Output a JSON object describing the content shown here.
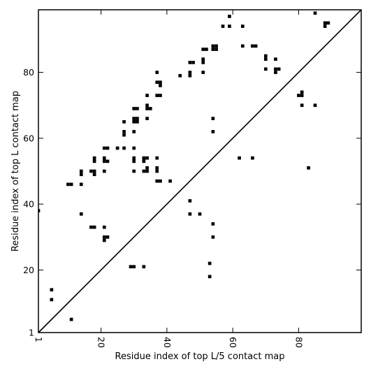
{
  "chart_data": {
    "type": "scatter",
    "title": "",
    "xlabel": "Residue index of top L/5 contact map",
    "ylabel": "Residue index of top L contact map",
    "xlim": [
      1,
      99
    ],
    "ylim": [
      1,
      99
    ],
    "xticks": [
      1,
      20,
      40,
      60,
      80
    ],
    "yticks": [
      1,
      20,
      40,
      60,
      80
    ],
    "x_tick_labels": [
      "1",
      "20",
      "40",
      "60",
      "80"
    ],
    "y_tick_labels": [
      "1",
      "20",
      "40",
      "60",
      "80"
    ],
    "x_tick_label_rotation_deg": 90,
    "grid": false,
    "legend": "none",
    "marker": "square",
    "marker_color": "#000000",
    "reference_line": {
      "type": "diagonal",
      "from": [
        1,
        1
      ],
      "to": [
        99,
        99
      ]
    },
    "points": [
      [
        59,
        97
      ],
      [
        85,
        98
      ],
      [
        57,
        94
      ],
      [
        59,
        94
      ],
      [
        63,
        94
      ],
      [
        88,
        95
      ],
      [
        89,
        95
      ],
      [
        88,
        94
      ],
      [
        54,
        88
      ],
      [
        55,
        88
      ],
      [
        63,
        88
      ],
      [
        66,
        88
      ],
      [
        67,
        88
      ],
      [
        52,
        87
      ],
      [
        51,
        87
      ],
      [
        55,
        87
      ],
      [
        54,
        87
      ],
      [
        70,
        85
      ],
      [
        70,
        84
      ],
      [
        73,
        84
      ],
      [
        51,
        84
      ],
      [
        51,
        83
      ],
      [
        47,
        83
      ],
      [
        48,
        83
      ],
      [
        70,
        81
      ],
      [
        73,
        81
      ],
      [
        74,
        81
      ],
      [
        73,
        80
      ],
      [
        37,
        80
      ],
      [
        47,
        80
      ],
      [
        51,
        80
      ],
      [
        47,
        79
      ],
      [
        44,
        79
      ],
      [
        37,
        77
      ],
      [
        38,
        77
      ],
      [
        38,
        76
      ],
      [
        81,
        74
      ],
      [
        80,
        73
      ],
      [
        81,
        73
      ],
      [
        34,
        73
      ],
      [
        37,
        73
      ],
      [
        38,
        73
      ],
      [
        81,
        70
      ],
      [
        85,
        70
      ],
      [
        30,
        69
      ],
      [
        31,
        69
      ],
      [
        34,
        70
      ],
      [
        34,
        69
      ],
      [
        35,
        69
      ],
      [
        30,
        66
      ],
      [
        31,
        66
      ],
      [
        34,
        66
      ],
      [
        54,
        66
      ],
      [
        30,
        65
      ],
      [
        31,
        65
      ],
      [
        27,
        65
      ],
      [
        27,
        62
      ],
      [
        27,
        61
      ],
      [
        30,
        62
      ],
      [
        54,
        62
      ],
      [
        21,
        57
      ],
      [
        22,
        57
      ],
      [
        25,
        57
      ],
      [
        27,
        57
      ],
      [
        30,
        57
      ],
      [
        18,
        54
      ],
      [
        18,
        53
      ],
      [
        21,
        54
      ],
      [
        21,
        53
      ],
      [
        22,
        53
      ],
      [
        30,
        54
      ],
      [
        30,
        53
      ],
      [
        33,
        54
      ],
      [
        34,
        54
      ],
      [
        33,
        53
      ],
      [
        37,
        54
      ],
      [
        62,
        54
      ],
      [
        66,
        54
      ],
      [
        34,
        51
      ],
      [
        37,
        51
      ],
      [
        83,
        51
      ],
      [
        17,
        50
      ],
      [
        18,
        50
      ],
      [
        14,
        50
      ],
      [
        21,
        50
      ],
      [
        30,
        50
      ],
      [
        33,
        50
      ],
      [
        34,
        50
      ],
      [
        37,
        50
      ],
      [
        14,
        49
      ],
      [
        18,
        49
      ],
      [
        37,
        47
      ],
      [
        38,
        47
      ],
      [
        41,
        47
      ],
      [
        10,
        46
      ],
      [
        11,
        46
      ],
      [
        14,
        46
      ],
      [
        47,
        41
      ],
      [
        1,
        38
      ],
      [
        14,
        37
      ],
      [
        47,
        37
      ],
      [
        50,
        37
      ],
      [
        54,
        34
      ],
      [
        17,
        33
      ],
      [
        18,
        33
      ],
      [
        21,
        33
      ],
      [
        21,
        30
      ],
      [
        22,
        30
      ],
      [
        54,
        30
      ],
      [
        21,
        29
      ],
      [
        53,
        22
      ],
      [
        29,
        21
      ],
      [
        30,
        21
      ],
      [
        33,
        21
      ],
      [
        53,
        18
      ],
      [
        5,
        14
      ],
      [
        5,
        11
      ],
      [
        11,
        5
      ]
    ]
  }
}
